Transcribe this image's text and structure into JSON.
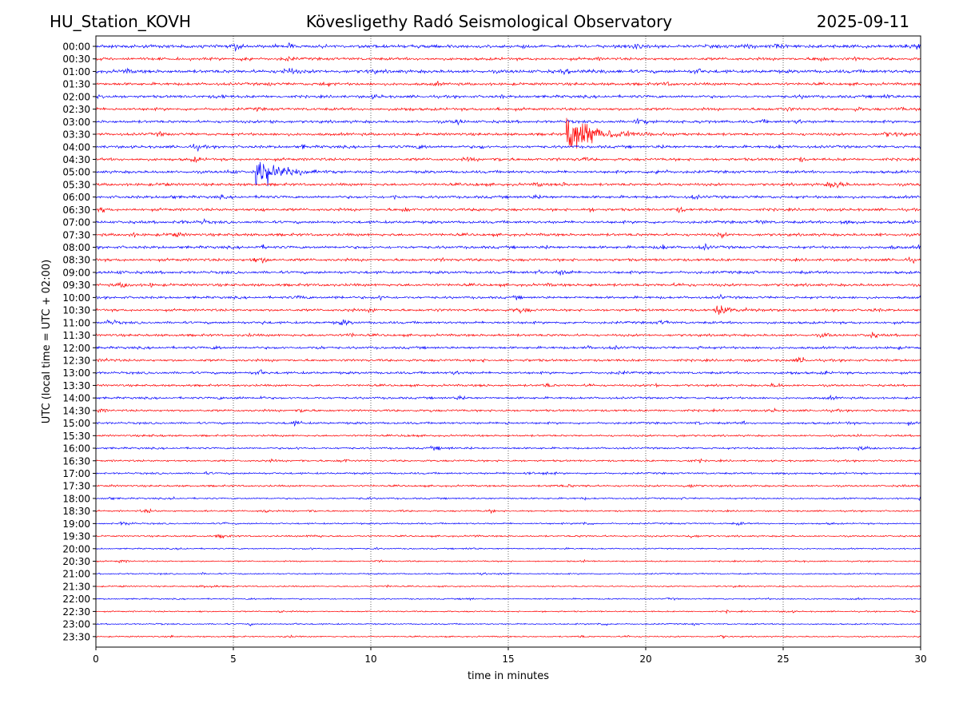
{
  "header": {
    "station": "HU_Station_KOVH",
    "observatory": "Kövesligethy Radó Seismological Observatory",
    "date": "2025-09-11"
  },
  "chart_data": {
    "type": "line",
    "title": "Kövesligethy Radó Seismological Observatory",
    "xlabel": "time in minutes",
    "ylabel": "UTC (local time = UTC + 02:00)",
    "xlim": [
      0,
      30
    ],
    "x_ticks": [
      0,
      5,
      10,
      15,
      20,
      25,
      30
    ],
    "grid": "vertical-dotted",
    "row_labels": [
      "00:00",
      "00:30",
      "01:00",
      "01:30",
      "02:00",
      "02:30",
      "03:00",
      "03:30",
      "04:00",
      "04:30",
      "05:00",
      "05:30",
      "06:00",
      "06:30",
      "07:00",
      "07:30",
      "08:00",
      "08:30",
      "09:00",
      "09:30",
      "10:00",
      "10:30",
      "11:00",
      "11:30",
      "12:00",
      "12:30",
      "13:00",
      "13:30",
      "14:00",
      "14:30",
      "15:00",
      "15:30",
      "16:00",
      "16:30",
      "17:00",
      "17:30",
      "18:00",
      "18:30",
      "19:00",
      "19:30",
      "20:00",
      "20:30",
      "21:00",
      "21:30",
      "22:00",
      "22:30",
      "23:00",
      "23:30"
    ],
    "trace_colors": [
      "#0000ff",
      "#ff0000"
    ],
    "noise_levels": [
      1.2,
      1.0,
      1.2,
      1.0,
      1.0,
      1.0,
      1.0,
      1.0,
      1.0,
      1.0,
      1.0,
      1.0,
      1.0,
      1.0,
      1.0,
      1.0,
      1.0,
      1.0,
      1.0,
      1.0,
      0.9,
      0.9,
      0.9,
      0.9,
      0.9,
      0.9,
      0.9,
      0.8,
      0.8,
      0.8,
      0.8,
      0.7,
      0.7,
      0.7,
      0.7,
      0.7,
      0.6,
      0.6,
      0.6,
      0.6,
      0.5,
      0.5,
      0.5,
      0.5,
      0.5,
      0.5,
      0.5,
      0.5
    ],
    "events": [
      {
        "row": "03:30",
        "onset_min": 17.1,
        "peak": 22,
        "duration_min": 3.5
      },
      {
        "row": "05:00",
        "onset_min": 5.8,
        "peak": 14,
        "duration_min": 3.0
      },
      {
        "row": "05:00",
        "onset_min": 6.25,
        "peak": 28,
        "duration_min": 0.15
      },
      {
        "row": "10:30",
        "onset_min": 22.5,
        "peak": 6,
        "duration_min": 2.5
      },
      {
        "row": "03:00",
        "onset_min": 19.5,
        "peak": 3,
        "duration_min": 2.5
      },
      {
        "row": "01:00",
        "onset_min": 17.0,
        "peak": 3,
        "duration_min": 1.5
      }
    ]
  }
}
